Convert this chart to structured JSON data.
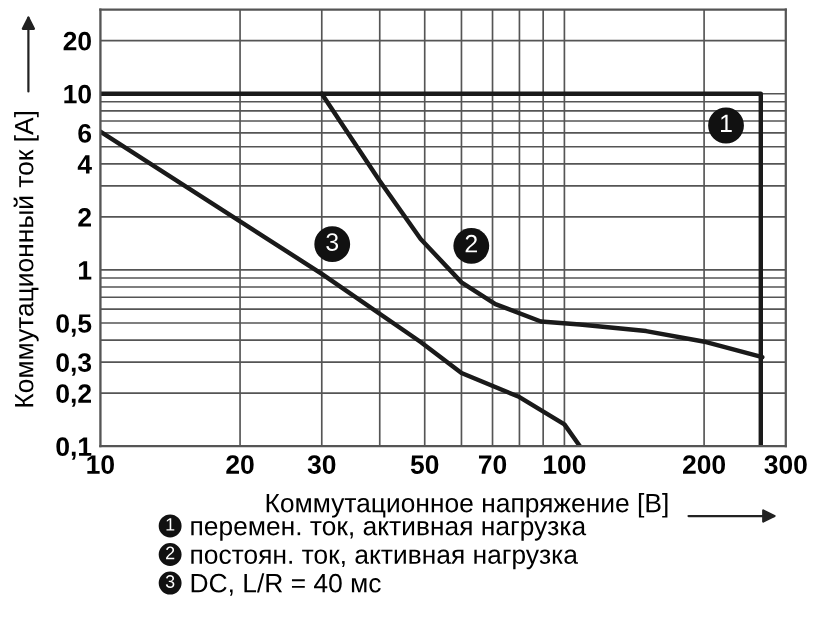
{
  "chart_data": {
    "type": "line",
    "xlabel": "Коммутационное напряжение [В]",
    "ylabel": "Коммутационный ток [A]",
    "log": "xy",
    "grid": true,
    "legend": "bottom",
    "marker": "none",
    "line_style": "solid",
    "xlim": [
      10,
      300
    ],
    "ylim": [
      0.1,
      30
    ],
    "xticks": [
      10,
      20,
      30,
      {
        "value": 40,
        "label": null
      },
      50,
      {
        "value": 60,
        "label": null
      },
      70,
      {
        "value": 80,
        "label": null
      },
      {
        "value": 90,
        "label": null
      },
      100,
      200,
      300
    ],
    "yticks": [
      {
        "value": 0.1,
        "label": "0,1"
      },
      {
        "value": 0.2,
        "label": "0,2"
      },
      {
        "value": 0.3,
        "label": "0,3"
      },
      {
        "value": 0.4,
        "label": null
      },
      {
        "value": 0.5,
        "label": "0,5"
      },
      {
        "value": 0.6,
        "label": null
      },
      {
        "value": 0.7,
        "label": null
      },
      {
        "value": 0.8,
        "label": null
      },
      {
        "value": 0.9,
        "label": null
      },
      1,
      2,
      {
        "value": 3,
        "label": null
      },
      4,
      {
        "value": 5,
        "label": null
      },
      6,
      {
        "value": 7,
        "label": null
      },
      {
        "value": 8,
        "label": null
      },
      {
        "value": 9,
        "label": null
      },
      10,
      20
    ],
    "series": [
      {
        "name": "перемен. ток, активная нагрузка",
        "color": "#1a1a1a",
        "x": [
          10,
          265,
          265
        ],
        "values": [
          10,
          10,
          0.1
        ]
      },
      {
        "name": "постоян. ток, активная нагрузка",
        "color": "#1a1a1a",
        "x": [
          30,
          40,
          49,
          60,
          71,
          89,
          108,
          150,
          202,
          267
        ],
        "values": [
          10,
          3.2,
          1.5,
          0.85,
          0.64,
          0.51,
          0.49,
          0.45,
          0.39,
          0.32
        ]
      },
      {
        "name": "DC, L/R = 40 мс",
        "color": "#1a1a1a",
        "x": [
          10,
          30,
          49,
          60,
          80,
          100,
          108
        ],
        "values": [
          6.1,
          0.95,
          0.39,
          0.26,
          0.19,
          0.133,
          0.1
        ]
      }
    ],
    "annotations": [
      {
        "text": "1",
        "x": 223,
        "y": 6.6
      },
      {
        "text": "2",
        "x": 63,
        "y": 1.37
      },
      {
        "text": "3",
        "x": 31.6,
        "y": 1.4
      }
    ]
  }
}
